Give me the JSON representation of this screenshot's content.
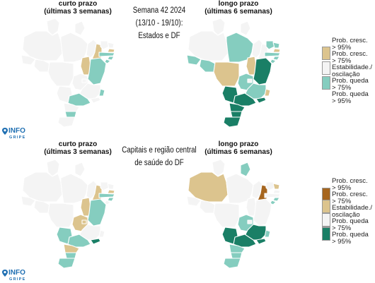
{
  "colors": {
    "grow95": "#a6661f",
    "grow75": "#dcc48e",
    "stable": "#f4f4f4",
    "drop75": "#85cdbf",
    "drop95": "#1a7f66",
    "border": "#ffffff",
    "logo": "#1f6fb2"
  },
  "top": {
    "center_title_lines": [
      "Semana 42 2024",
      "(13/10 - 19/10):",
      "Estados e DF"
    ],
    "left_title": [
      "curto prazo",
      "(últimas 3 semanas)"
    ],
    "right_title": [
      "longo prazo",
      "(últimas 6 semanas)"
    ],
    "legend": [
      {
        "label_lines": [
          "Prob. cresc.",
          "> 95%"
        ],
        "color": "#a6661f"
      },
      {
        "label_lines": [
          "Prob. cresc.",
          "> 75%"
        ],
        "color": "#dcc48e"
      },
      {
        "label_lines": [
          "Estabilidade./",
          "oscilação"
        ],
        "color": "#f4f4f4"
      },
      {
        "label_lines": [
          "Prob. queda",
          "> 75%"
        ],
        "color": "#85cdbf"
      },
      {
        "label_lines": [
          "Prob. queda",
          "> 95%"
        ],
        "color": "#1a7f66"
      }
    ],
    "logo": {
      "name": "INFO",
      "sub": "GRIPE"
    }
  },
  "bottom": {
    "center_title_lines": [
      "Capitais e região central",
      "de saúde do DF"
    ],
    "left_title": [
      "curto prazo",
      "(últimas 3 semanas)"
    ],
    "right_title": [
      "longo prazo",
      "(últimas 6 semanas)"
    ],
    "legend": [
      {
        "label_lines": [
          "Prob. cresc.",
          "> 95%"
        ],
        "color": "#a6661f"
      },
      {
        "label_lines": [
          "Prob. cresc.",
          "> 75%"
        ],
        "color": "#dcc48e"
      },
      {
        "label_lines": [
          "Estabilidade./",
          "oscilação"
        ],
        "color": "#f4f4f4"
      },
      {
        "label_lines": [
          "Prob. queda",
          "> 75%"
        ],
        "color": "#85cdbf"
      },
      {
        "label_lines": [
          "Prob. queda",
          "> 95%"
        ],
        "color": "#1a7f66"
      }
    ],
    "logo": {
      "name": "INFO",
      "sub": "GRIPE"
    }
  },
  "maps": {
    "top_short": {
      "AM": "stable",
      "PA": "stable",
      "RR": "stable",
      "AP": "stable",
      "AC": "stable",
      "RO": "stable",
      "MT": "stable",
      "TO": "grow75",
      "MA": "stable",
      "PI": "grow75",
      "CE": "stable",
      "RN": "stable",
      "PB": "grow75",
      "PE": "drop75",
      "AL": "drop75",
      "SE": "drop75",
      "BA": "drop75",
      "GO": "stable",
      "DF": "stable",
      "MS": "stable",
      "MG": "stable",
      "ES": "drop75",
      "RJ": "stable",
      "SP": "drop75",
      "PR": "stable",
      "SC": "drop75",
      "RS": "stable"
    },
    "top_long": {
      "AM": "stable",
      "PA": "drop75",
      "RR": "stable",
      "AP": "stable",
      "AC": "drop75",
      "RO": "drop75",
      "MT": "grow75",
      "TO": "grow75",
      "MA": "stable",
      "PI": "stable",
      "CE": "drop75",
      "RN": "drop75",
      "PB": "grow75",
      "PE": "drop75",
      "AL": "drop75",
      "SE": "drop75",
      "BA": "drop95",
      "GO": "drop75",
      "DF": "stable",
      "MS": "drop95",
      "MG": "drop75",
      "ES": "grow75",
      "RJ": "drop95",
      "SP": "drop95",
      "PR": "drop95",
      "SC": "drop95",
      "RS": "drop95"
    },
    "bottom_short": {
      "AM": "stable",
      "PA": "stable",
      "RR": "stable",
      "AP": "stable",
      "AC": "stable",
      "RO": "stable",
      "MT": "stable",
      "TO": "grow75",
      "MA": "stable",
      "PI": "grow75",
      "CE": "stable",
      "RN": "stable",
      "PB": "grow75",
      "PE": "drop75",
      "AL": "drop75",
      "SE": "stable",
      "BA": "drop75",
      "GO": "grow75",
      "DF": "grow75",
      "MS": "drop75",
      "MG": "stable",
      "ES": "stable",
      "RJ": "drop95",
      "SP": "drop75",
      "PR": "grow75",
      "SC": "drop75",
      "RS": "drop75"
    },
    "bottom_long": {
      "AM": "grow75",
      "PA": "stable",
      "RR": "stable",
      "AP": "drop75",
      "AC": "stable",
      "RO": "stable",
      "MT": "stable",
      "TO": "stable",
      "MA": "stable",
      "PI": "grow95",
      "CE": "stable",
      "RN": "grow75",
      "PB": "stable",
      "PE": "stable",
      "AL": "drop75",
      "SE": "drop75",
      "BA": "stable",
      "GO": "drop75",
      "DF": "stable",
      "MS": "drop95",
      "MG": "drop95",
      "ES": "drop75",
      "RJ": "drop95",
      "SP": "drop95",
      "PR": "drop75",
      "SC": "drop75",
      "RS": "drop75"
    }
  }
}
